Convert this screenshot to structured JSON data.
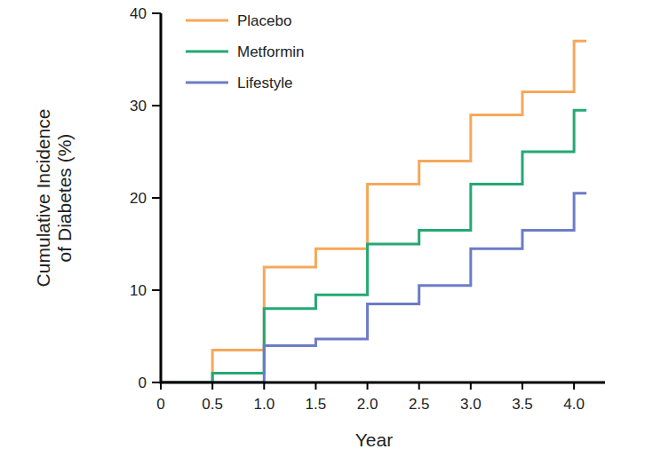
{
  "chart_data": {
    "type": "step",
    "y_label": [
      "Cumulative Incidence",
      "of Diabetes (%)"
    ],
    "x_label": "Year",
    "x": [
      0,
      0.5,
      1.0,
      1.5,
      2.0,
      2.5,
      3.0,
      3.5,
      4.0,
      4.12
    ],
    "series": [
      {
        "name": "Placebo",
        "color": "#f5a85a",
        "values": [
          0,
          3.5,
          12.5,
          14.5,
          21.5,
          24,
          29,
          31.5,
          37,
          37
        ]
      },
      {
        "name": "Metformin",
        "color": "#23a874",
        "values": [
          0,
          1,
          8,
          9.5,
          15,
          16.5,
          21.5,
          25,
          29.5,
          29.5
        ]
      },
      {
        "name": "Lifestyle",
        "color": "#6c7cc6",
        "values": [
          0,
          0,
          4,
          4.7,
          8.5,
          10.5,
          14.5,
          16.5,
          20.5,
          20.5
        ]
      }
    ],
    "xlim": [
      0,
      4.3
    ],
    "xticks": [
      0,
      0.5,
      {
        "value": 1,
        "label": "1.0"
      },
      1.5,
      {
        "value": 2,
        "label": "2.0"
      },
      2.5,
      {
        "value": 3,
        "label": "3.0"
      },
      3.5,
      {
        "value": 4,
        "label": "4.0"
      }
    ],
    "ylim": [
      0,
      40
    ],
    "yticks": [
      0,
      10,
      20,
      30,
      40
    ],
    "grid": false,
    "legend": "upper left"
  }
}
